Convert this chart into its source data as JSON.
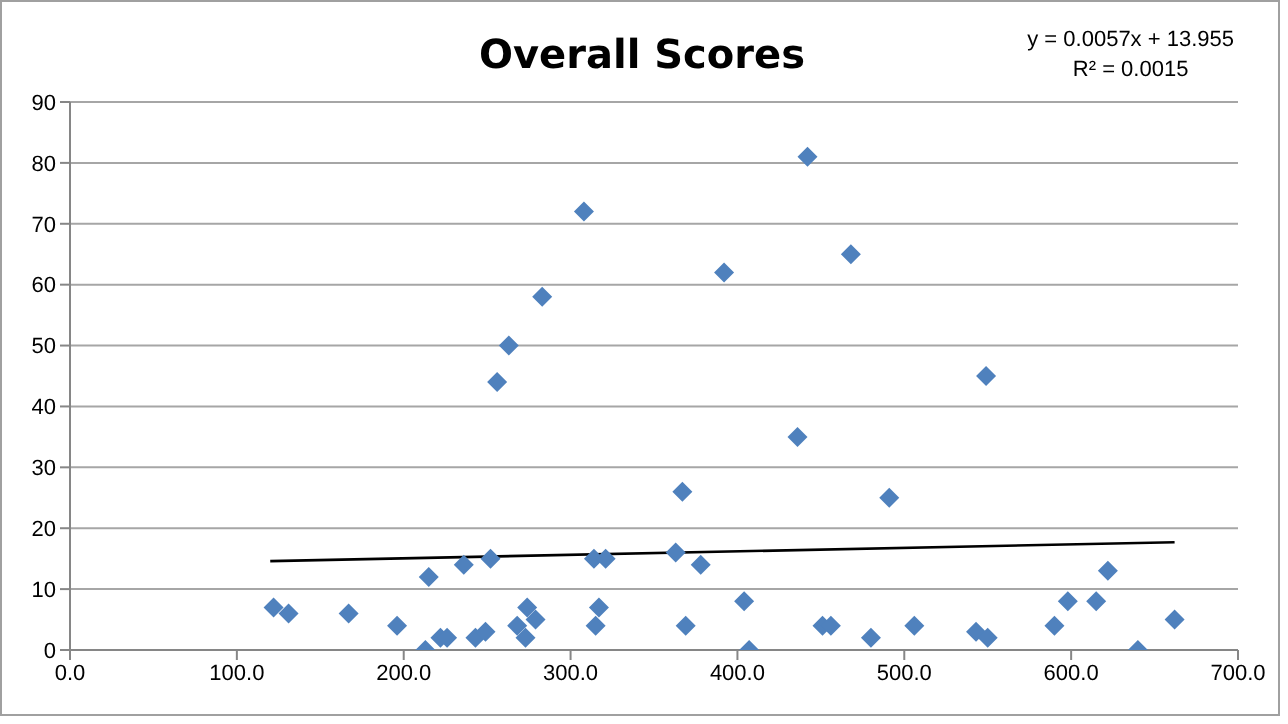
{
  "chart_data": {
    "type": "scatter",
    "title": "Overall Scores",
    "annotations": [
      "y = 0.0057x + 13.955",
      "R² = 0.0015"
    ],
    "xlim": [
      0,
      700
    ],
    "xticks": [
      {
        "value": 0,
        "label": "0.0"
      },
      {
        "value": 100,
        "label": "100.0"
      },
      {
        "value": 200,
        "label": "200.0"
      },
      {
        "value": 300,
        "label": "300.0"
      },
      {
        "value": 400,
        "label": "400.0"
      },
      {
        "value": 500,
        "label": "500.0"
      },
      {
        "value": 600,
        "label": "600.0"
      },
      {
        "value": 700,
        "label": "700.0"
      }
    ],
    "ylim": [
      0,
      90
    ],
    "yticks": [
      0,
      10,
      20,
      30,
      40,
      50,
      60,
      70,
      80,
      90
    ],
    "grid": "y",
    "legend": false,
    "marker": "diamond",
    "series": [
      {
        "color": "#4f81bd",
        "x": [
          122,
          131,
          167,
          196,
          213,
          215,
          222,
          226,
          236,
          243,
          249,
          252,
          256,
          263,
          268,
          274,
          273,
          279,
          283,
          308,
          314,
          315,
          317,
          321,
          363,
          367,
          369,
          378,
          392,
          404,
          407,
          436,
          442,
          451,
          456,
          468,
          480,
          491,
          506,
          543,
          549,
          550,
          590,
          598,
          615,
          622,
          640,
          662
        ],
        "values": [
          7,
          6,
          6,
          4,
          0,
          12,
          2,
          2,
          14,
          2,
          3,
          15,
          44,
          50,
          4,
          7,
          2,
          5,
          58,
          72,
          15,
          4,
          7,
          15,
          16,
          26,
          4,
          14,
          62,
          8,
          0,
          35,
          81,
          4,
          4,
          65,
          2,
          25,
          4,
          3,
          45,
          2,
          4,
          8,
          8,
          13,
          0,
          5
        ]
      },
      {
        "type": "line",
        "color": "#000000",
        "marker": "none",
        "x": [
          120,
          662
        ],
        "values": [
          14.6,
          17.7
        ]
      }
    ]
  }
}
